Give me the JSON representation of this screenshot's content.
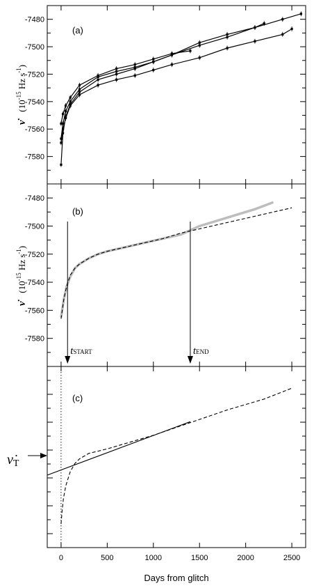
{
  "x_axis": {
    "label": "Days from glitch",
    "range": [
      -150,
      2650
    ],
    "ticks": [
      0,
      500,
      1000,
      1500,
      2000,
      2500
    ],
    "tick_labels": [
      "0",
      "500",
      "1000",
      "1500",
      "2000",
      "2500"
    ]
  },
  "y_axis_label": {
    "symbol": "ν̇",
    "unit_prefix": "(10",
    "exponent": "-15",
    "unit_suffix": " Hz s",
    "unit_exponent": "-1",
    "close": ")"
  },
  "panels": {
    "a": {
      "label": "(a)"
    },
    "b": {
      "label": "(b)",
      "t_start": {
        "prefix": "t",
        "subscript": "START",
        "day": 70
      },
      "t_end": {
        "prefix": "t",
        "subscript": "END",
        "day": 1400
      }
    },
    "c": {
      "label": "(c)",
      "nudot_t_symbol": "ν̇",
      "nudot_t_subscript": "T"
    }
  },
  "chart_data": [
    {
      "type": "line",
      "panel": "a",
      "title": "",
      "xlabel": "",
      "ylabel": "ν̇ (10^-15 Hz s^-1)",
      "ylim": [
        -7600,
        -7470
      ],
      "yticks": [
        -7580,
        -7560,
        -7540,
        -7520,
        -7500,
        -7480
      ],
      "series": [
        {
          "x": [
            0,
            20,
            50,
            100,
            200,
            400,
            600,
            800,
            1000,
            1200,
            1500,
            1800,
            2100,
            2400,
            2600
          ],
          "y": [
            -7586,
            -7563,
            -7551,
            -7542,
            -7533,
            -7524,
            -7520,
            -7516,
            -7511,
            -7506,
            -7497,
            -7491,
            -7486,
            -7480,
            -7476
          ]
        },
        {
          "x": [
            0,
            20,
            50,
            100,
            200,
            400,
            600,
            800,
            1000,
            1200,
            1500,
            1800,
            2100,
            2200
          ],
          "y": [
            -7567,
            -7556,
            -7547,
            -7540,
            -7531,
            -7522,
            -7518,
            -7515,
            -7511,
            -7506,
            -7499,
            -7493,
            -7486,
            -7483
          ]
        },
        {
          "x": [
            0,
            20,
            50,
            100,
            200,
            400,
            600,
            800,
            1000,
            1200,
            1400
          ],
          "y": [
            -7556,
            -7549,
            -7543,
            -7537,
            -7528,
            -7521,
            -7516,
            -7513,
            -7509,
            -7505,
            -7503
          ]
        },
        {
          "x": [
            0,
            20,
            50,
            100,
            200,
            400,
            600,
            800,
            1000,
            1200,
            1500,
            1800,
            2100,
            2400,
            2500
          ],
          "y": [
            -7570,
            -7560,
            -7552,
            -7543,
            -7535,
            -7528,
            -7524,
            -7521,
            -7517,
            -7513,
            -7508,
            -7501,
            -7496,
            -7491,
            -7487
          ]
        }
      ]
    },
    {
      "type": "line",
      "panel": "b",
      "title": "",
      "xlabel": "",
      "ylabel": "ν̇ (10^-15 Hz s^-1)",
      "ylim": [
        -7600,
        -7470
      ],
      "yticks": [
        -7580,
        -7560,
        -7540,
        -7520,
        -7500,
        -7480
      ],
      "series": [
        {
          "style": "gray-data",
          "x": [
            0,
            30,
            60,
            100,
            150,
            200,
            300,
            400,
            500,
            700,
            900,
            1100,
            1300,
            1500,
            1700,
            1900,
            2100,
            2300
          ],
          "y": [
            -7565,
            -7552,
            -7543,
            -7536,
            -7530,
            -7527,
            -7523,
            -7520,
            -7518,
            -7515,
            -7512,
            -7509,
            -7506,
            -7500,
            -7496,
            -7492,
            -7488,
            -7483
          ]
        },
        {
          "style": "dashed-model",
          "x": [
            0,
            30,
            60,
            100,
            150,
            200,
            300,
            400,
            500,
            700,
            900,
            1100,
            1300,
            1500,
            1700,
            1900,
            2100,
            2300,
            2500
          ],
          "y": [
            -7566,
            -7552,
            -7543,
            -7535,
            -7530,
            -7527,
            -7523,
            -7520,
            -7518,
            -7515,
            -7512,
            -7509,
            -7505,
            -7502,
            -7499,
            -7496,
            -7493,
            -7490,
            -7487
          ]
        }
      ]
    },
    {
      "type": "line",
      "panel": "c",
      "title": "",
      "xlabel": "Days from glitch",
      "ylabel": "",
      "series": [
        {
          "style": "solid-linear",
          "x": [
            -150,
            1400
          ],
          "y": [
            0.6,
            0.305
          ]
        },
        {
          "style": "dashed-model",
          "x": [
            0,
            10,
            25,
            50,
            100,
            150,
            200,
            300,
            500,
            700,
            1000,
            1400,
            1800,
            2200,
            2500
          ],
          "y": [
            0.87,
            0.8,
            0.73,
            0.66,
            0.58,
            0.535,
            0.51,
            0.48,
            0.455,
            0.425,
            0.38,
            0.31,
            0.24,
            0.18,
            0.12
          ]
        },
        {
          "style": "dotted-vertical",
          "x": [
            0,
            0
          ],
          "y": [
            0,
            1
          ]
        }
      ]
    }
  ]
}
